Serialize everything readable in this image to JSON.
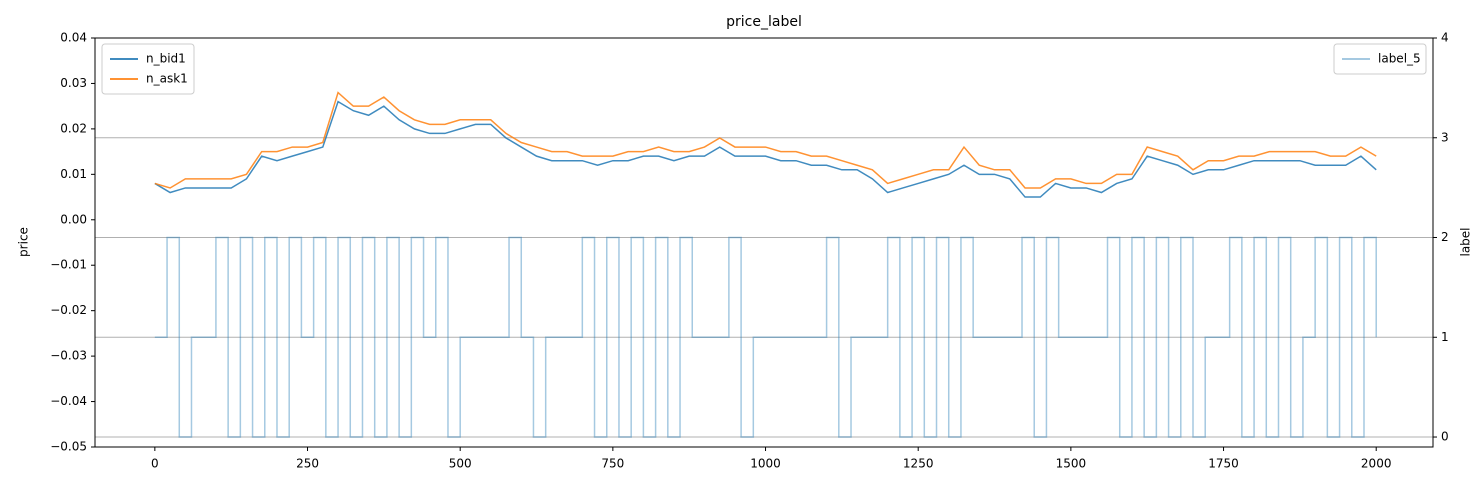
{
  "chart_data": {
    "type": "line",
    "title": "price_label",
    "ylabel": "price",
    "y2label": "label",
    "x": [
      0,
      25,
      50,
      75,
      100,
      125,
      150,
      175,
      200,
      225,
      250,
      275,
      300,
      325,
      350,
      375,
      400,
      425,
      450,
      475,
      500,
      525,
      550,
      575,
      600,
      625,
      650,
      675,
      700,
      725,
      750,
      775,
      800,
      825,
      850,
      875,
      900,
      925,
      950,
      975,
      1000,
      1025,
      1050,
      1075,
      1100,
      1125,
      1150,
      1175,
      1200,
      1225,
      1250,
      1275,
      1300,
      1325,
      1350,
      1375,
      1400,
      1425,
      1450,
      1475,
      1500,
      1525,
      1550,
      1575,
      1600,
      1625,
      1650,
      1675,
      1700,
      1725,
      1750,
      1775,
      1800,
      1825,
      1850,
      1875,
      1900,
      1925,
      1950,
      1975,
      2000
    ],
    "series": [
      {
        "name": "label_5",
        "color": "#1f77b4",
        "alpha": 0.4,
        "axis": "y2",
        "drawstyle": "steps-post",
        "x": [
          0,
          20,
          40,
          60,
          80,
          100,
          120,
          140,
          160,
          180,
          200,
          220,
          240,
          260,
          280,
          300,
          320,
          340,
          360,
          380,
          400,
          420,
          440,
          460,
          480,
          500,
          520,
          540,
          560,
          580,
          600,
          620,
          640,
          660,
          680,
          700,
          720,
          740,
          760,
          780,
          800,
          820,
          840,
          860,
          880,
          900,
          920,
          940,
          960,
          980,
          1000,
          1020,
          1040,
          1060,
          1080,
          1100,
          1120,
          1140,
          1160,
          1180,
          1200,
          1220,
          1240,
          1260,
          1280,
          1300,
          1320,
          1340,
          1360,
          1380,
          1400,
          1420,
          1440,
          1460,
          1480,
          1500,
          1520,
          1540,
          1560,
          1580,
          1600,
          1620,
          1640,
          1660,
          1680,
          1700,
          1720,
          1740,
          1760,
          1780,
          1800,
          1820,
          1840,
          1860,
          1880,
          1900,
          1920,
          1940,
          1960,
          1980,
          2000
        ],
        "values": [
          1,
          2,
          0,
          1,
          1,
          2,
          0,
          2,
          0,
          2,
          0,
          2,
          1,
          2,
          0,
          2,
          0,
          2,
          0,
          2,
          0,
          2,
          1,
          2,
          0,
          1,
          1,
          1,
          1,
          2,
          1,
          0,
          1,
          1,
          1,
          2,
          0,
          2,
          0,
          2,
          0,
          2,
          0,
          2,
          1,
          1,
          1,
          2,
          0,
          1,
          1,
          1,
          1,
          1,
          1,
          2,
          0,
          1,
          1,
          1,
          2,
          0,
          2,
          0,
          2,
          0,
          2,
          1,
          1,
          1,
          1,
          2,
          0,
          2,
          1,
          1,
          1,
          1,
          2,
          0,
          2,
          0,
          2,
          0,
          2,
          0,
          1,
          1,
          2,
          0,
          2,
          0,
          2,
          0,
          1,
          2,
          0,
          2,
          0,
          2,
          1
        ]
      },
      {
        "name": "n_bid1",
        "color": "#1f77b4",
        "alpha": 0.85,
        "values": [
          0.008,
          0.006,
          0.007,
          0.007,
          0.007,
          0.007,
          0.009,
          0.014,
          0.013,
          0.014,
          0.015,
          0.016,
          0.026,
          0.024,
          0.023,
          0.025,
          0.022,
          0.02,
          0.019,
          0.019,
          0.02,
          0.021,
          0.021,
          0.018,
          0.016,
          0.014,
          0.013,
          0.013,
          0.013,
          0.012,
          0.013,
          0.013,
          0.014,
          0.014,
          0.013,
          0.014,
          0.014,
          0.016,
          0.014,
          0.014,
          0.014,
          0.013,
          0.013,
          0.012,
          0.012,
          0.011,
          0.011,
          0.009,
          0.006,
          0.007,
          0.008,
          0.009,
          0.01,
          0.012,
          0.01,
          0.01,
          0.009,
          0.005,
          0.005,
          0.008,
          0.007,
          0.007,
          0.006,
          0.008,
          0.009,
          0.014,
          0.013,
          0.012,
          0.01,
          0.011,
          0.011,
          0.012,
          0.013,
          0.013,
          0.013,
          0.013,
          0.012,
          0.012,
          0.012,
          0.014,
          0.011
        ]
      },
      {
        "name": "n_ask1",
        "color": "#ff7f0e",
        "alpha": 0.85,
        "values": [
          0.008,
          0.007,
          0.009,
          0.009,
          0.009,
          0.009,
          0.01,
          0.015,
          0.015,
          0.016,
          0.016,
          0.017,
          0.028,
          0.025,
          0.025,
          0.027,
          0.024,
          0.022,
          0.021,
          0.021,
          0.022,
          0.022,
          0.022,
          0.019,
          0.017,
          0.016,
          0.015,
          0.015,
          0.014,
          0.014,
          0.014,
          0.015,
          0.015,
          0.016,
          0.015,
          0.015,
          0.016,
          0.018,
          0.016,
          0.016,
          0.016,
          0.015,
          0.015,
          0.014,
          0.014,
          0.013,
          0.012,
          0.011,
          0.008,
          0.009,
          0.01,
          0.011,
          0.011,
          0.016,
          0.012,
          0.011,
          0.011,
          0.007,
          0.007,
          0.009,
          0.009,
          0.008,
          0.008,
          0.01,
          0.01,
          0.016,
          0.015,
          0.014,
          0.011,
          0.013,
          0.013,
          0.014,
          0.014,
          0.015,
          0.015,
          0.015,
          0.015,
          0.014,
          0.014,
          0.016,
          0.014
        ]
      }
    ],
    "xlim": [
      -98,
      2093
    ],
    "xticks": [
      0,
      250,
      500,
      750,
      1000,
      1250,
      1500,
      1750,
      2000
    ],
    "ylim": [
      -0.05,
      0.04
    ],
    "yticks": [
      {
        "value": -0.05,
        "label": "−0.05"
      },
      {
        "value": -0.04,
        "label": "−0.04"
      },
      {
        "value": -0.03,
        "label": "−0.03"
      },
      {
        "value": -0.02,
        "label": "−0.02"
      },
      {
        "value": -0.01,
        "label": "−0.01"
      },
      {
        "value": 0,
        "label": "0.00"
      },
      0.01,
      0.02,
      0.03,
      0.04
    ],
    "y2lim": [
      -0.1,
      4
    ],
    "y2ticks": [
      0,
      1,
      2,
      3,
      4
    ],
    "grid": "y2",
    "legend": [
      {
        "series": [
          1,
          2
        ],
        "loc": "upper left"
      },
      {
        "series": [
          0
        ],
        "loc": "upper right"
      }
    ]
  }
}
